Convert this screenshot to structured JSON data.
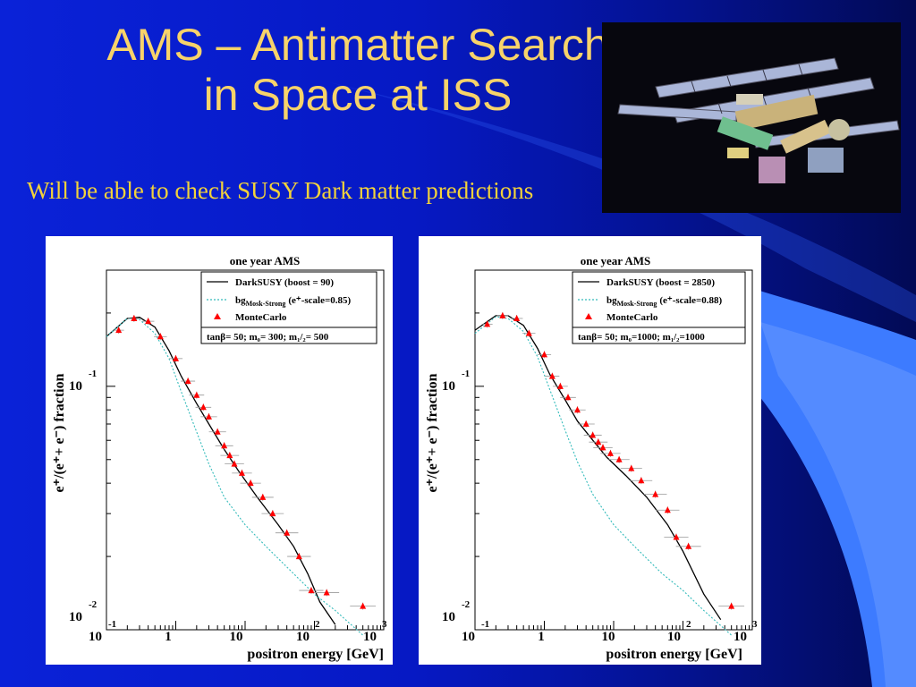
{
  "slide": {
    "title_line1": "AMS – Antimatter Search",
    "title_line2": "in Space at ISS",
    "subtitle": "Will be able to check SUSY Dark matter predictions",
    "photo_icon": "space-station",
    "colors": {
      "background": "#0619c4",
      "title": "#f7d36a",
      "subtitle": "#f2d23a",
      "ribbon": "#3d7bff"
    }
  },
  "chart_data": [
    {
      "type": "line",
      "title": "one year AMS",
      "xlabel": "positron energy [GeV]",
      "ylabel": "e+/(e+ + e-) fraction",
      "x_scale": "log",
      "y_scale": "log",
      "xlim": [
        0.1,
        1000
      ],
      "ylim": [
        0.01,
        0.3
      ],
      "x_ticks": [
        "10^-1",
        "1",
        "10",
        "10^2",
        "10^3"
      ],
      "y_ticks": [
        "10^-1",
        "10^-2"
      ],
      "legend": {
        "placement": "top-right",
        "entries": [
          "DarkSUSY (boost = 90)",
          "bg Mosk-Strong (e+-scale=0.85)",
          "MonteCarlo"
        ],
        "params": "tanβ= 50; m0= 300; m1/2= 500"
      },
      "series": [
        {
          "name": "DarkSUSY (boost = 90)",
          "style": "solid",
          "color": "#000000",
          "x": [
            0.1,
            0.2,
            0.3,
            0.5,
            0.8,
            1.2,
            2,
            3,
            5,
            8,
            15,
            30,
            50,
            80,
            120,
            200
          ],
          "y": [
            0.16,
            0.19,
            0.192,
            0.175,
            0.14,
            0.11,
            0.085,
            0.07,
            0.055,
            0.045,
            0.035,
            0.027,
            0.022,
            0.017,
            0.013,
            0.0105
          ]
        },
        {
          "name": "bg Mosk-Strong (e+-scale=0.85)",
          "style": "dotted",
          "color": "#33bbbb",
          "x": [
            0.1,
            0.2,
            0.3,
            0.5,
            0.8,
            1.2,
            2,
            3,
            5,
            10,
            20,
            50,
            100,
            200,
            500
          ],
          "y": [
            0.16,
            0.19,
            0.188,
            0.165,
            0.13,
            0.095,
            0.065,
            0.048,
            0.035,
            0.027,
            0.022,
            0.017,
            0.014,
            0.012,
            0.0095
          ]
        },
        {
          "name": "MonteCarlo",
          "style": "marker",
          "color": "#ff0000",
          "x": [
            0.15,
            0.25,
            0.4,
            0.6,
            1.0,
            1.5,
            2,
            2.5,
            3,
            4,
            5,
            6,
            7,
            9,
            12,
            18,
            25,
            40,
            60,
            90,
            150,
            500
          ],
          "y": [
            0.17,
            0.19,
            0.185,
            0.16,
            0.13,
            0.105,
            0.092,
            0.082,
            0.075,
            0.065,
            0.057,
            0.052,
            0.048,
            0.044,
            0.04,
            0.035,
            0.03,
            0.025,
            0.02,
            0.0145,
            0.0142,
            0.0125
          ]
        }
      ]
    },
    {
      "type": "line",
      "title": "one year AMS",
      "xlabel": "positron energy [GeV]",
      "ylabel": "e+/(e+ + e-) fraction",
      "x_scale": "log",
      "y_scale": "log",
      "xlim": [
        0.1,
        1000
      ],
      "ylim": [
        0.01,
        0.3
      ],
      "x_ticks": [
        "10^-1",
        "1",
        "10",
        "10^2",
        "10^3"
      ],
      "y_ticks": [
        "10^-1",
        "10^-2"
      ],
      "legend": {
        "placement": "top-right",
        "entries": [
          "DarkSUSY (boost = 2850)",
          "bg Mosk-Strong (e+-scale=0.88)",
          "MonteCarlo"
        ],
        "params": "tanβ= 50; m0=1000; m1/2=1000"
      },
      "series": [
        {
          "name": "DarkSUSY (boost = 2850)",
          "style": "solid",
          "color": "#000000",
          "x": [
            0.1,
            0.2,
            0.3,
            0.5,
            0.8,
            1.2,
            2,
            3,
            5,
            8,
            15,
            30,
            60,
            100,
            200,
            350
          ],
          "y": [
            0.17,
            0.195,
            0.195,
            0.178,
            0.143,
            0.112,
            0.088,
            0.072,
            0.06,
            0.051,
            0.043,
            0.035,
            0.027,
            0.021,
            0.014,
            0.011
          ]
        },
        {
          "name": "bg Mosk-Strong (e+-scale=0.88)",
          "style": "dotted",
          "color": "#33bbbb",
          "x": [
            0.1,
            0.2,
            0.3,
            0.5,
            0.8,
            1.2,
            2,
            3,
            5,
            10,
            20,
            50,
            100,
            200,
            500
          ],
          "y": [
            0.165,
            0.193,
            0.19,
            0.168,
            0.132,
            0.097,
            0.066,
            0.049,
            0.036,
            0.027,
            0.022,
            0.017,
            0.0145,
            0.012,
            0.0095
          ]
        },
        {
          "name": "MonteCarlo",
          "style": "marker",
          "color": "#ff0000",
          "x": [
            0.15,
            0.25,
            0.4,
            0.6,
            1.0,
            1.3,
            1.7,
            2.2,
            3,
            4,
            5,
            6,
            7,
            9,
            12,
            18,
            25,
            40,
            60,
            80,
            120,
            500
          ],
          "y": [
            0.18,
            0.195,
            0.19,
            0.165,
            0.135,
            0.11,
            0.1,
            0.09,
            0.08,
            0.07,
            0.063,
            0.059,
            0.056,
            0.053,
            0.05,
            0.046,
            0.041,
            0.036,
            0.031,
            0.024,
            0.022,
            0.0125
          ]
        }
      ]
    }
  ],
  "chart_text": [
    {
      "title": "one year AMS",
      "ylabel": "e⁺/(e⁺+ e⁻) fraction",
      "xlabel": "positron energy [GeV]",
      "ytick_1": "10",
      "ytick_1_exp": "-1",
      "ytick_2": "10",
      "ytick_2_exp": "-2",
      "xtick_0": "10",
      "xtick_0_exp": "-1",
      "xtick_1": "1",
      "xtick_2": "10",
      "xtick_3": "10",
      "xtick_3_exp": "2",
      "xtick_4": "10",
      "xtick_4_exp": "3",
      "legend_1": "DarkSUSY (boost = 90)",
      "legend_2_main": "bg",
      "legend_2_sub": "Mosk-Strong",
      "legend_2_tail": "(e⁺-scale=0.85)",
      "legend_3": "MonteCarlo",
      "params": "tanβ= 50; m₀= 300; m₁/₂= 500"
    },
    {
      "title": "one year AMS",
      "ylabel": "e⁺/(e⁺+ e⁻) fraction",
      "xlabel": "positron energy [GeV]",
      "ytick_1": "10",
      "ytick_1_exp": "-1",
      "ytick_2": "10",
      "ytick_2_exp": "-2",
      "xtick_0": "10",
      "xtick_0_exp": "-1",
      "xtick_1": "1",
      "xtick_2": "10",
      "xtick_3": "10",
      "xtick_3_exp": "2",
      "xtick_4": "10",
      "xtick_4_exp": "3",
      "legend_1": "DarkSUSY (boost = 2850)",
      "legend_2_main": "bg",
      "legend_2_sub": "Mosk-Strong",
      "legend_2_tail": "(e⁺-scale=0.88)",
      "legend_3": "MonteCarlo",
      "params": "tanβ= 50; m₀=1000; m₁/₂=1000"
    }
  ]
}
